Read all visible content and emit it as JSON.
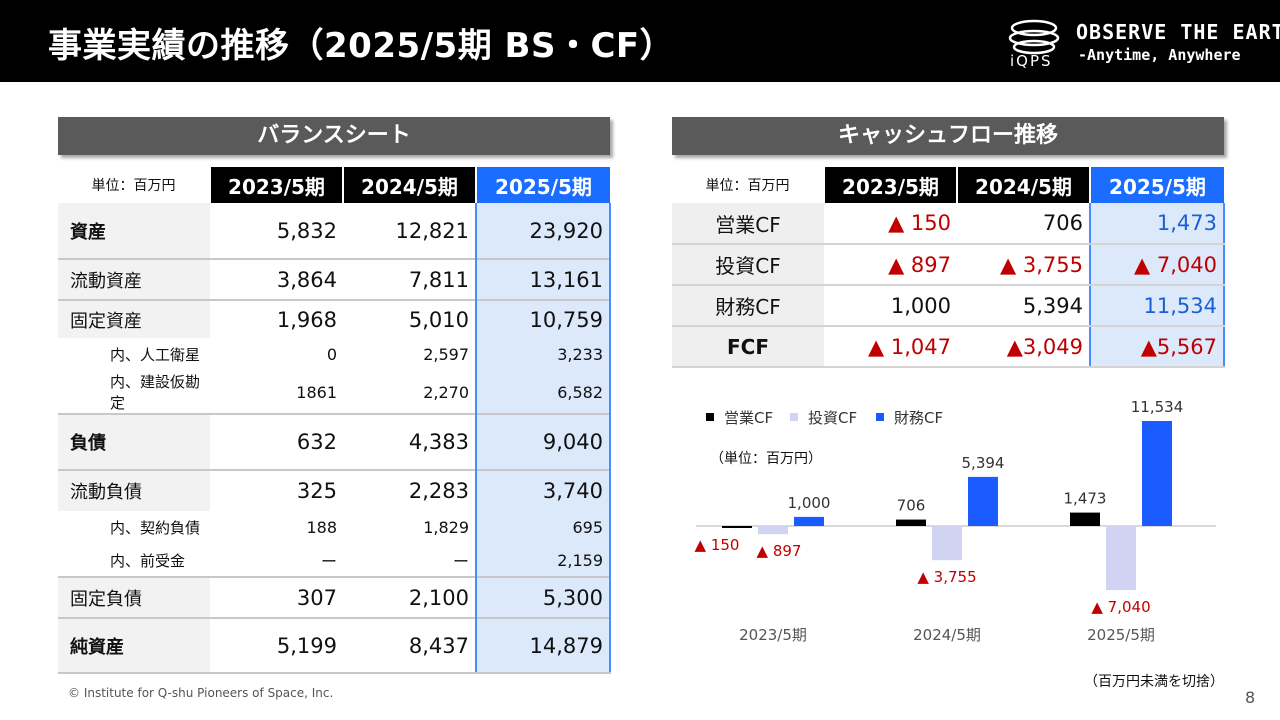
{
  "header": {
    "title": "事業実績の推移（2025/5期 BS・CF）",
    "logo_text": "iQPS",
    "tagline1": "OBSERVE THE EARTH",
    "tagline2": "-Anytime, Anywhere"
  },
  "bs": {
    "title": "バランスシート",
    "unit": "単位：百万円",
    "years": [
      "2023/5期",
      "2024/5期",
      "2025/5期"
    ],
    "rows": [
      {
        "label": "資産",
        "values": [
          "5,832",
          "12,821",
          "23,920"
        ]
      },
      {
        "label": "流動資産",
        "values": [
          "3,864",
          "7,811",
          "13,161"
        ]
      },
      {
        "label": "固定資産",
        "values": [
          "1,968",
          "5,010",
          "10,759"
        ]
      },
      {
        "label": "内、人工衛星",
        "values": [
          "0",
          "2,597",
          "3,233"
        ]
      },
      {
        "label": "内、建設仮勘定",
        "values": [
          "1861",
          "2,270",
          "6,582"
        ]
      },
      {
        "label": "負債",
        "values": [
          "632",
          "4,383",
          "9,040"
        ]
      },
      {
        "label": "流動負債",
        "values": [
          "325",
          "2,283",
          "3,740"
        ]
      },
      {
        "label": "内、契約負債",
        "values": [
          "188",
          "1,829",
          "695"
        ]
      },
      {
        "label": "内、前受金",
        "values": [
          "ー",
          "ー",
          "2,159"
        ]
      },
      {
        "label": "固定負債",
        "values": [
          "307",
          "2,100",
          "5,300"
        ]
      },
      {
        "label": "純資産",
        "values": [
          "5,199",
          "8,437",
          "14,879"
        ]
      }
    ]
  },
  "cf": {
    "title": "キャッシュフロー推移",
    "unit": "単位：百万円",
    "years": [
      "2023/5期",
      "2024/5期",
      "2025/5期"
    ],
    "rows": [
      {
        "label": "営業CF",
        "values": [
          "▲ 150",
          "706",
          "1,473"
        ]
      },
      {
        "label": "投資CF",
        "values": [
          "▲ 897",
          "▲ 3,755",
          "▲ 7,040"
        ]
      },
      {
        "label": "財務CF",
        "values": [
          "1,000",
          "5,394",
          "11,534"
        ]
      },
      {
        "label": "FCF",
        "values": [
          "▲ 1,047",
          "▲3,049",
          "▲5,567"
        ]
      }
    ]
  },
  "chart_data": {
    "type": "bar",
    "categories": [
      "2023/5期",
      "2024/5期",
      "2025/5期"
    ],
    "series": [
      {
        "name": "営業CF",
        "color": "#000000",
        "values": [
          -150,
          706,
          1473
        ],
        "labels": [
          "▲ 150",
          "706",
          "1,473"
        ]
      },
      {
        "name": "投資CF",
        "color": "#d0d4f2",
        "values": [
          -897,
          -3755,
          -7040
        ],
        "labels": [
          "▲ 897",
          "▲ 3,755",
          "▲ 7,040"
        ]
      },
      {
        "name": "財務CF",
        "color": "#1a5cff",
        "values": [
          1000,
          5394,
          11534
        ],
        "labels": [
          "1,000",
          "5,394",
          "11,534"
        ]
      }
    ],
    "unit_note": "（単位：百万円）",
    "legend_position": "top-left",
    "negative_label_color": "#c00000",
    "grid": false
  },
  "footer": {
    "copyright": "© Institute for Q-shu Pioneers of Space, Inc.",
    "note": "（百万円未満を切捨）",
    "page": "8"
  }
}
